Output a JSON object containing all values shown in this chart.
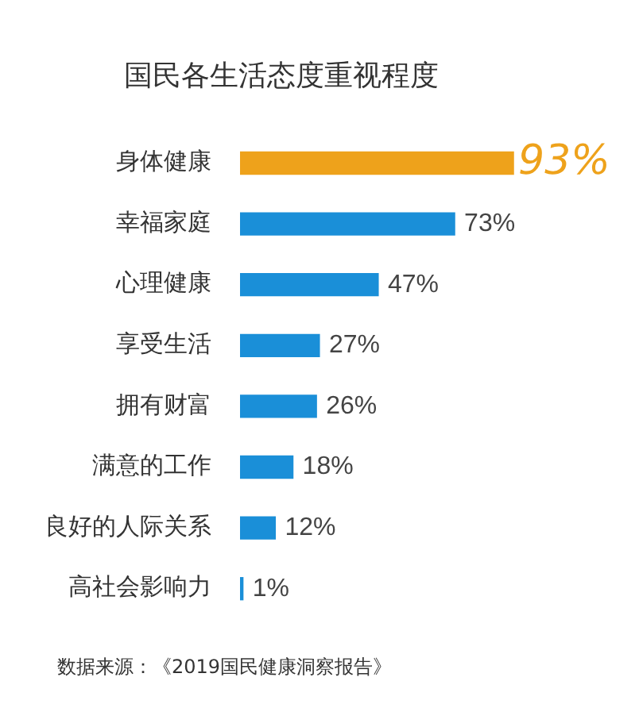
{
  "chart_data": {
    "type": "bar",
    "orientation": "horizontal",
    "title": "国民各生活态度重视程度",
    "categories": [
      "身体健康",
      "幸福家庭",
      "心理健康",
      "享受生活",
      "拥有财富",
      "满意的工作",
      "良好的人际关系",
      "高社会影响力"
    ],
    "values": [
      93,
      73,
      47,
      27,
      26,
      18,
      12,
      1
    ],
    "colors": [
      "#eea21b",
      "#1a8fd8",
      "#1a8fd8",
      "#1a8fd8",
      "#1a8fd8",
      "#1a8fd8",
      "#1a8fd8",
      "#1a8fd8"
    ],
    "value_labels": [
      "93%",
      "73%",
      "47%",
      "27%",
      "26%",
      "18%",
      "12%",
      "1%"
    ],
    "grid": false,
    "legend": false,
    "tick_labels": "y",
    "annotations": [
      "数据来源：《2019国民健康洞察报告》"
    ]
  }
}
